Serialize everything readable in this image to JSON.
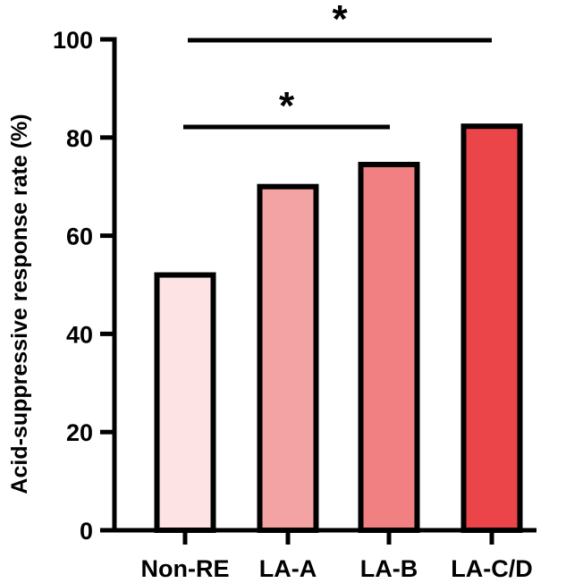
{
  "chart_data": {
    "type": "bar",
    "title": "",
    "xlabel": "",
    "ylabel": "Acid-suppressive response rate (%)",
    "categories": [
      "Non-RE",
      "LA-A",
      "LA-B",
      "LA-C/D"
    ],
    "values": [
      52,
      70,
      74.5,
      82.3
    ],
    "bar_colors": [
      "#fde3e3",
      "#f4a3a4",
      "#f08082",
      "#ec4549"
    ],
    "ylim": [
      0,
      100
    ],
    "yticks": [
      0,
      20,
      40,
      60,
      80,
      100
    ],
    "ytick_labels": [
      "0",
      "20",
      "40",
      "60",
      "80",
      "100"
    ],
    "grid": false,
    "significance": [
      {
        "from": "Non-RE",
        "to": "LA-B",
        "label": "*"
      },
      {
        "from": "Non-RE",
        "to": "LA-C/D",
        "label": "*"
      }
    ]
  }
}
